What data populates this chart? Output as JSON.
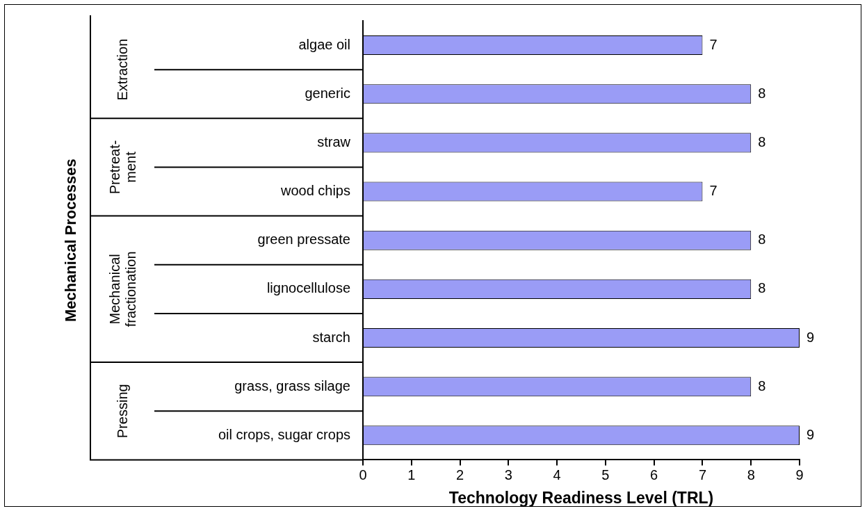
{
  "chart_data": {
    "type": "bar",
    "orientation": "horizontal",
    "categories": [
      "algae oil",
      "generic",
      "straw",
      "wood chips",
      "green pressate",
      "lignocellulose",
      "starch",
      "grass, grass silage",
      "oil crops, sugar crops"
    ],
    "values": [
      7,
      8,
      8,
      7,
      8,
      8,
      9,
      8,
      9
    ],
    "color": "#9a9cf6",
    "xlim": [
      0,
      9
    ],
    "xticks": [
      0,
      1,
      2,
      3,
      4,
      5,
      6,
      7,
      8,
      9
    ],
    "xlabel": "Technology Readiness Level (TRL)",
    "annotations": [
      "Mechanical Processes",
      "Extraction",
      "Pretreat-ment",
      "Mechanical fractionation",
      "Pressing"
    ],
    "data_labels": true,
    "grid": false,
    "legend": false
  }
}
